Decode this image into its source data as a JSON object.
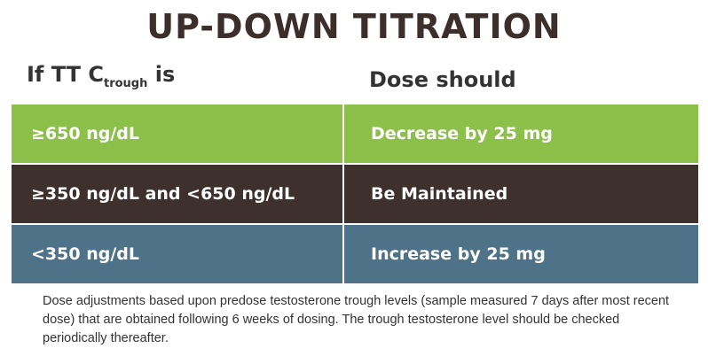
{
  "title": "UP-DOWN TITRATION",
  "header": {
    "left_prefix": "If TT C",
    "left_sub": "trough",
    "left_suffix": " is",
    "right": "Dose should"
  },
  "rows": [
    {
      "level": "≥650 ng/dL",
      "action": "Decrease by 25 mg",
      "color": "#8dc04b"
    },
    {
      "level": "≥350 ng/dL and <650 ng/dL",
      "action": "Be Maintained",
      "color": "#3d302d"
    },
    {
      "level": "<350 ng/dL",
      "action": "Increase by 25 mg",
      "color": "#4e7388"
    }
  ],
  "footnote": "Dose adjustments based upon predose testosterone trough levels (sample measured 7 days after most recent dose) that are obtained following 6 weeks of dosing. The trough testosterone level should be checked periodically thereafter."
}
